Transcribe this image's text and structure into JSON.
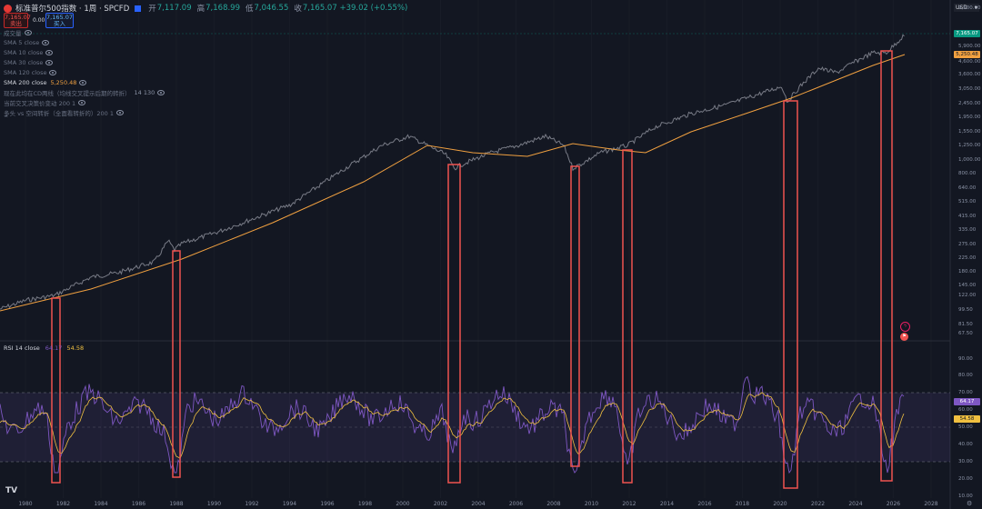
{
  "header": {
    "title": "标准普尔500指数 · 1周 · SPCFD",
    "ohlc": [
      {
        "key": "开",
        "value": "7,117.09"
      },
      {
        "key": "高",
        "value": "7,168.99"
      },
      {
        "key": "低",
        "value": "7,046.55"
      },
      {
        "key": "收",
        "value": "7,165.07 +39.02 (+0.55%)"
      }
    ],
    "sell_price": "7,165.07",
    "sell_label": "卖出",
    "spread": "0.00",
    "buy_price": "7,165.07",
    "buy_label": "买入",
    "currency": "USD"
  },
  "indicators": [
    {
      "label": "成交量",
      "value": ""
    },
    {
      "label": "SMA 5 close",
      "value": ""
    },
    {
      "label": "SMA 10 close",
      "value": ""
    },
    {
      "label": "SMA 30 close",
      "value": ""
    },
    {
      "label": "SMA 120 close",
      "value": ""
    },
    {
      "label": "SMA 200 close",
      "value": "5,250.48"
    },
    {
      "label": "现在此均在CD两线（均线交叉提示后期的转折）",
      "value": "14 130"
    },
    {
      "label": "当前交叉决策价变动 200 1",
      "value": ""
    },
    {
      "label": "多头 vs 空间转折（全面看转折的）200 1",
      "value": ""
    }
  ],
  "price_axis": {
    "ticks": [
      "9,500.00",
      "7,165.07",
      "5,900.00",
      "4,600.00",
      "3,600.00",
      "3,050.00",
      "2,450.00",
      "1,950.00",
      "1,550.00",
      "1,250.00",
      "1,000.00",
      "800.00",
      "640.00",
      "515.00",
      "415.00",
      "335.00",
      "275.00",
      "225.00",
      "180.00",
      "145.00",
      "122.00",
      "99.50",
      "81.50",
      "67.50"
    ],
    "last_price": "7,165.07",
    "sma200_price": "5,250.48"
  },
  "rsi": {
    "label": "RSI 14 close",
    "value": "64.17",
    "ma_value": "54.58",
    "ticks": [
      "90.00",
      "80.00",
      "70.00",
      "60.00",
      "50.00",
      "40.00",
      "30.00",
      "20.00",
      "10.00"
    ],
    "badge_rsi": "64.17",
    "badge_ma": "54.58"
  },
  "time_axis": {
    "years": [
      "1980",
      "1982",
      "1984",
      "1986",
      "1988",
      "1990",
      "1992",
      "1994",
      "1996",
      "1998",
      "2000",
      "2002",
      "2004",
      "2006",
      "2008",
      "2010",
      "2012",
      "2014",
      "2016",
      "2018",
      "2020",
      "2022",
      "2024",
      "2026",
      "2028"
    ]
  },
  "colors": {
    "background": "#131722",
    "price_line": "#787b86",
    "sma200": "#f0a040",
    "rsi_line": "#7e57c2",
    "rsi_ma": "#f0c040",
    "highlight_box": "#ef5350",
    "last_price_badge": "#089981",
    "sma_badge": "#f0a040"
  },
  "icons": {
    "logo": "tradingview-logo-icon",
    "collapse": "chevron-up-icon",
    "settings": "gear-icon",
    "lightning": "lightning-icon",
    "flag": "flag-icon"
  }
}
